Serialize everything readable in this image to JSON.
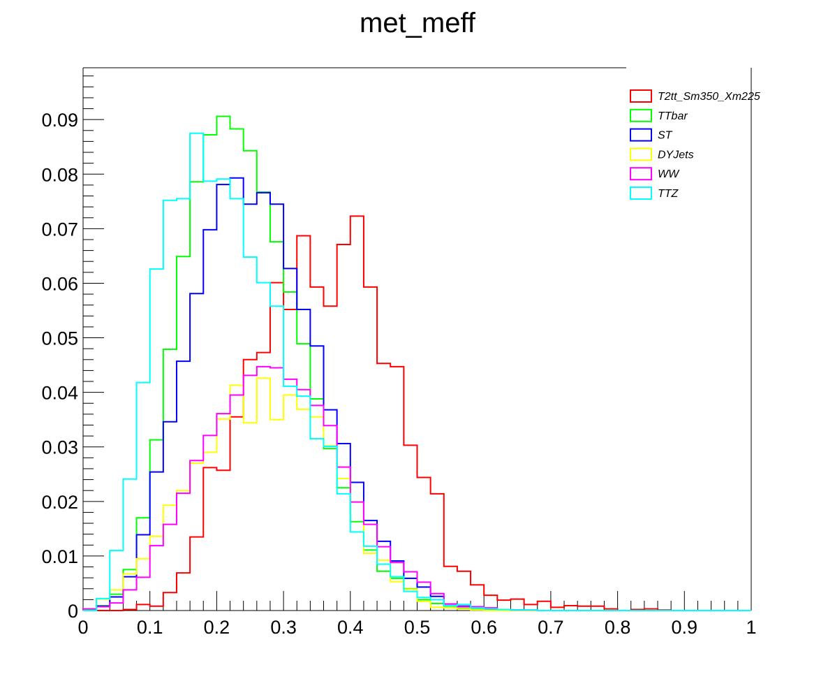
{
  "chart_data": {
    "type": "line",
    "style": "step-histogram",
    "title": "met_meff",
    "xlabel": "",
    "ylabel": "",
    "xlim": [
      0,
      1
    ],
    "ylim": [
      0,
      0.0995
    ],
    "bin_edges_start": 0,
    "bin_width": 0.02,
    "x_ticks": [
      "0",
      "0.1",
      "0.2",
      "0.3",
      "0.4",
      "0.5",
      "0.6",
      "0.7",
      "0.8",
      "0.9",
      "1"
    ],
    "y_ticks": [
      "0",
      "0.01",
      "0.02",
      "0.03",
      "0.04",
      "0.05",
      "0.06",
      "0.07",
      "0.08",
      "0.09"
    ],
    "grid": false,
    "legend_position": "top-right",
    "series": [
      {
        "name": "T2tt_Sm350_Xm225",
        "color": "#ff0000",
        "values": [
          0,
          0,
          0,
          0.0002,
          0.0011,
          0.0008,
          0.0033,
          0.0069,
          0.0135,
          0.0262,
          0.0257,
          0.0355,
          0.046,
          0.0473,
          0.0601,
          0.0552,
          0.0687,
          0.0593,
          0.0558,
          0.0671,
          0.0723,
          0.0593,
          0.0453,
          0.0447,
          0.0303,
          0.0244,
          0.0214,
          0.0081,
          0.0072,
          0.0047,
          0.0028,
          0.0019,
          0.0021,
          0.0011,
          0.0017,
          0.0006,
          0.0009,
          0.0008,
          0.0008,
          0.0003,
          0,
          0.0002,
          0.0003,
          0.0001,
          0,
          0,
          0,
          0,
          0,
          0
        ]
      },
      {
        "name": "TTbar",
        "color": "#00ff00",
        "values": [
          0.0002,
          0.0009,
          0.003,
          0.0075,
          0.017,
          0.0313,
          0.0479,
          0.0649,
          0.0786,
          0.0872,
          0.0906,
          0.0883,
          0.0843,
          0.0767,
          0.0676,
          0.0584,
          0.0489,
          0.0388,
          0.0297,
          0.0225,
          0.0163,
          0.0111,
          0.0072,
          0.0059,
          0.004,
          0.002,
          0.0013,
          0.0006,
          0.0004,
          0.0002,
          0.0001,
          0,
          0,
          0,
          0,
          0,
          0,
          0,
          0,
          0,
          0,
          0,
          0,
          0,
          0,
          0,
          0,
          0,
          0,
          0
        ]
      },
      {
        "name": "ST",
        "color": "#0000ff",
        "values": [
          0,
          0.0008,
          0.0025,
          0.0062,
          0.0139,
          0.0254,
          0.0346,
          0.0457,
          0.0581,
          0.0698,
          0.0781,
          0.0793,
          0.0745,
          0.0766,
          0.0745,
          0.0627,
          0.0552,
          0.0485,
          0.0368,
          0.0306,
          0.0235,
          0.0165,
          0.0127,
          0.0091,
          0.0059,
          0.0043,
          0.0026,
          0.0012,
          0.0008,
          0.0005,
          0.0003,
          0.0002,
          0.0001,
          0,
          0,
          0,
          0,
          0,
          0,
          0,
          0,
          0,
          0,
          0,
          0,
          0,
          0,
          0,
          0,
          0
        ]
      },
      {
        "name": "DYJets",
        "color": "#ffff00",
        "values": [
          0.0003,
          0.0021,
          0.0038,
          0.0067,
          0.0095,
          0.0136,
          0.0193,
          0.022,
          0.027,
          0.029,
          0.0351,
          0.0413,
          0.0344,
          0.0426,
          0.035,
          0.0395,
          0.0369,
          0.0355,
          0.0302,
          0.0242,
          0.0199,
          0.0105,
          0.0092,
          0.0053,
          0.0039,
          0.0017,
          0.0006,
          0.0005,
          0.0003,
          0.0001,
          0,
          0,
          0,
          0,
          0,
          0,
          0,
          0,
          0,
          0,
          0,
          0,
          0,
          0,
          0,
          0,
          0,
          0,
          0,
          0
        ]
      },
      {
        "name": "WW",
        "color": "#ff00ff",
        "values": [
          0.0003,
          0.0007,
          0.0014,
          0.0038,
          0.0061,
          0.0119,
          0.0158,
          0.0215,
          0.0275,
          0.0321,
          0.0361,
          0.0395,
          0.0431,
          0.0447,
          0.0445,
          0.0424,
          0.0405,
          0.0376,
          0.0339,
          0.0263,
          0.0199,
          0.0158,
          0.0117,
          0.0088,
          0.0071,
          0.0052,
          0.0031,
          0.0012,
          0.0007,
          0.0007,
          0.0005,
          0.0002,
          0.0001,
          0.0001,
          0,
          0,
          0,
          0,
          0,
          0,
          0,
          0,
          0,
          0,
          0,
          0,
          0,
          0,
          0,
          0
        ]
      },
      {
        "name": "TTZ",
        "color": "#00ffff",
        "values": [
          0,
          0.0022,
          0.011,
          0.0241,
          0.0418,
          0.0626,
          0.0752,
          0.0755,
          0.0875,
          0.0787,
          0.0791,
          0.0755,
          0.0648,
          0.0601,
          0.0558,
          0.0411,
          0.0393,
          0.0315,
          0.0301,
          0.0214,
          0.0144,
          0.0118,
          0.0085,
          0.0062,
          0.0035,
          0.0024,
          0.002,
          0.0009,
          0.0011,
          0.0005,
          0.0003,
          0.0002,
          0.0001,
          0.0001,
          0,
          0,
          0,
          0,
          0,
          0,
          0,
          0,
          0,
          0,
          0,
          0,
          0,
          0,
          0,
          0
        ]
      }
    ]
  }
}
